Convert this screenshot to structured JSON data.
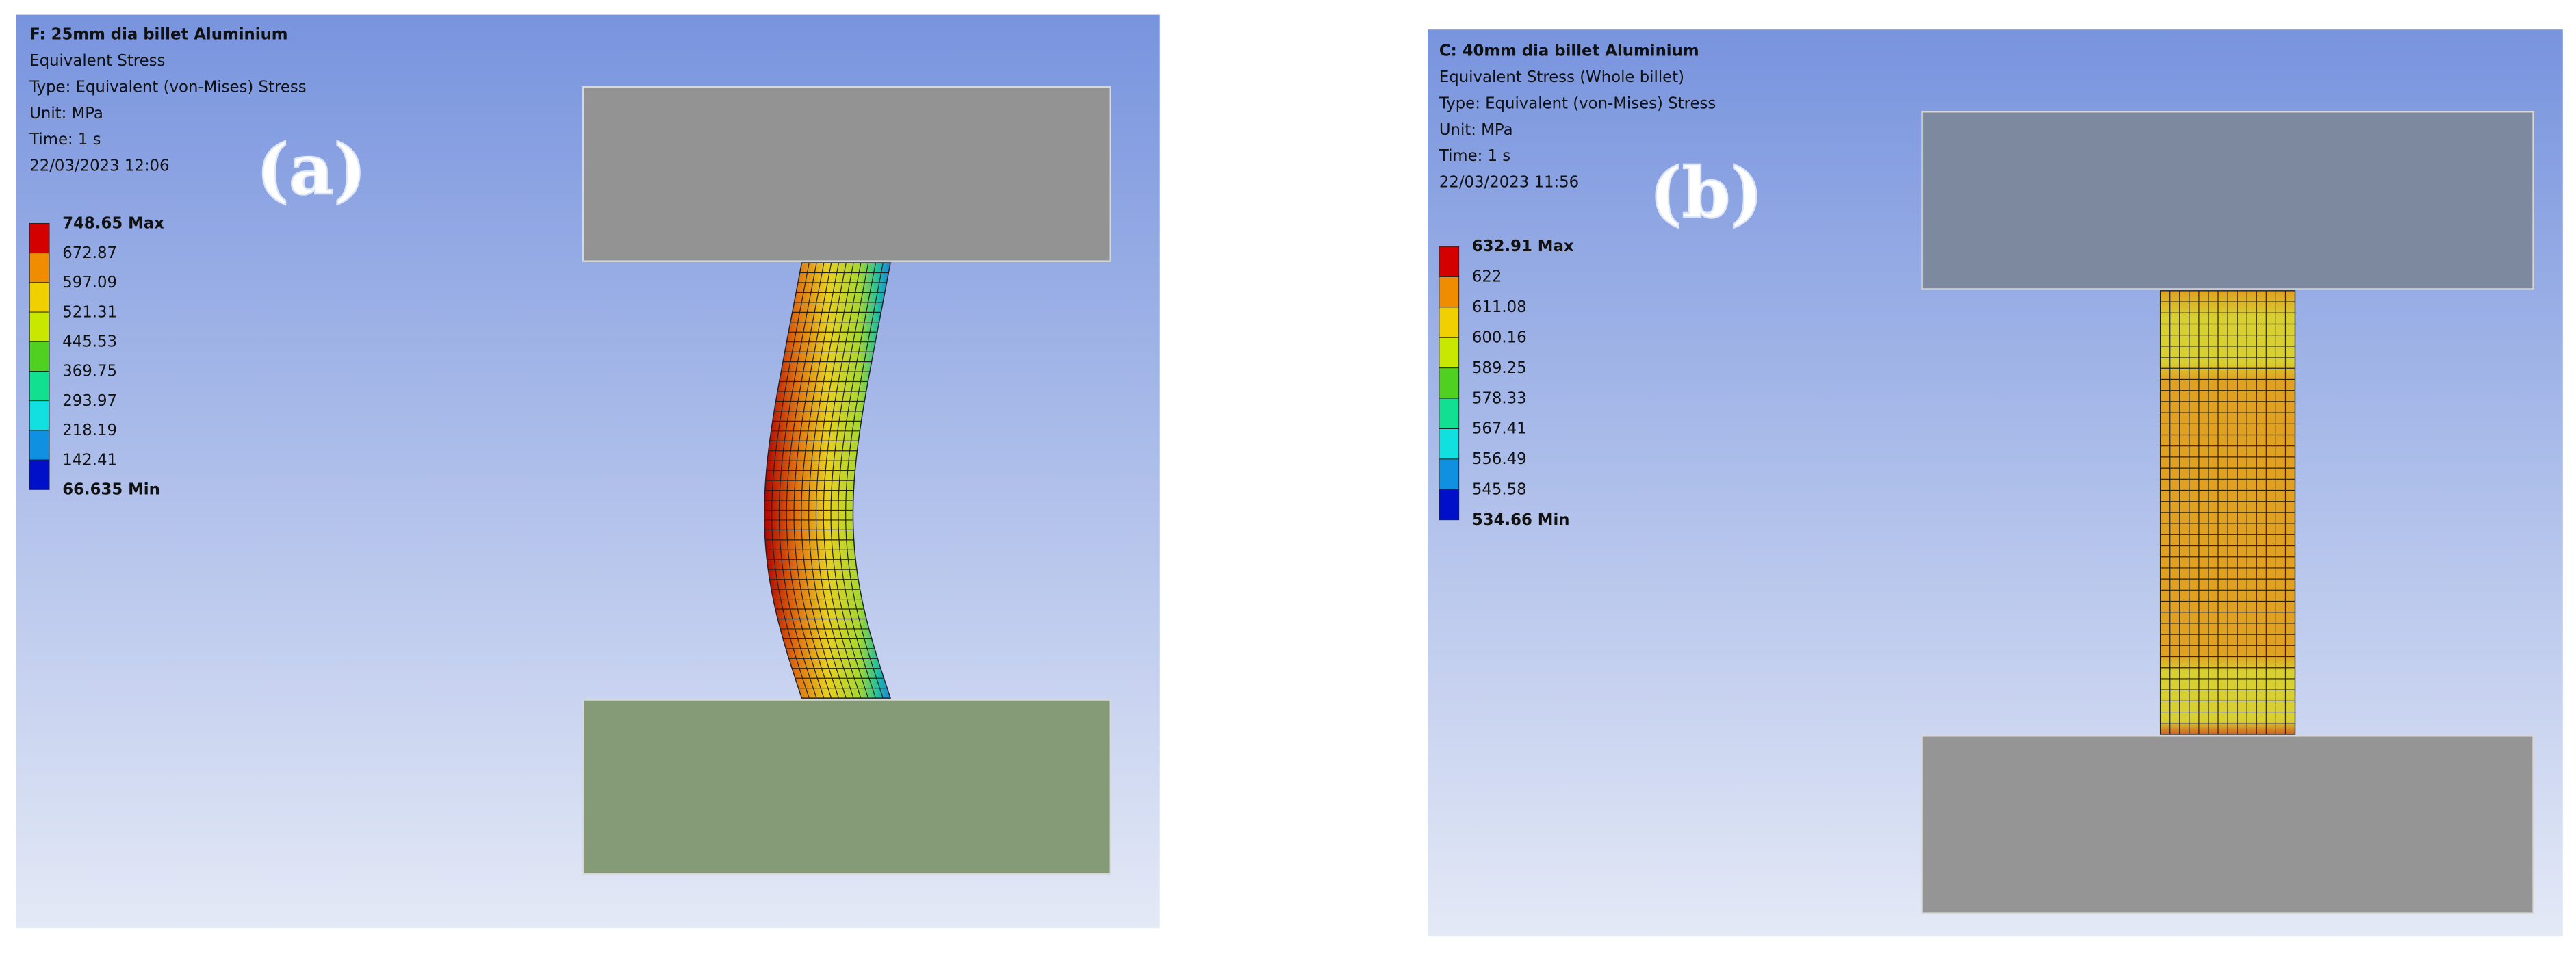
{
  "panels": [
    {
      "label": "(a)",
      "header": [
        "F: 25mm dia billet Aluminium",
        "Equivalent Stress",
        "Type: Equivalent (von-Mises) Stress",
        "Unit: MPa",
        "Time: 1 s",
        "22/03/2023 12:06"
      ],
      "legend": [
        "748.65 Max",
        "672.87",
        "597.09",
        "521.31",
        "445.53",
        "369.75",
        "293.97",
        "218.19",
        "142.41",
        "66.635 Min"
      ]
    },
    {
      "label": "(b)",
      "header": [
        "C: 40mm dia billet Aluminium",
        "Equivalent Stress (Whole billet)",
        "Type: Equivalent (von-Mises) Stress",
        "Unit: MPa",
        "Time: 1 s",
        "22/03/2023 11:56"
      ],
      "legend": [
        "632.91 Max",
        "622",
        "611.08",
        "600.16",
        "589.25",
        "578.33",
        "567.41",
        "556.49",
        "545.58",
        "534.66 Min"
      ]
    }
  ]
}
